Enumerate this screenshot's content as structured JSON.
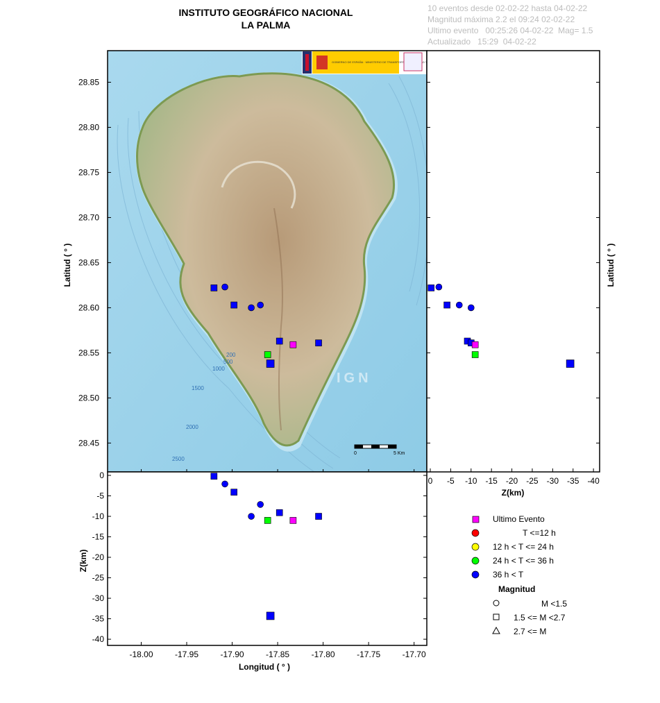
{
  "header": {
    "title_line1": "INSTITUTO GEOGRÁFICO NACIONAL",
    "title_line2": "LA PALMA",
    "info_line1": "10 eventos desde 02-02-22 hasta 04-02-22",
    "info_line2": "Magnitud máxima 2.2 el 09:24 02-02-22",
    "info_line3": "Ultimo evento   00:25:26 04-02-22  Mag= 1.5",
    "info_line4": "Actualizado   15:29  04-02-22"
  },
  "map": {
    "watermark": "IGN",
    "scale_start": "0",
    "scale_end": "5 Km",
    "contours": [
      "200",
      "500",
      "1000",
      "1500",
      "2000",
      "2500"
    ],
    "logo_text": "GOBIERNO DE ESPAÑA · MINISTERIO DE TRANSPORTES, MOVILIDAD Y AGENDA URBANA"
  },
  "colors": {
    "latest": "#ff00ff",
    "le12h": "#ff0000",
    "h12_24": "#ffff00",
    "h24_36": "#00ff00",
    "gt36h": "#0000ff",
    "sea": "#9fd3ea",
    "land": "#c9b79a"
  },
  "chart_data": {
    "type": "scatter",
    "panels": [
      "map (Longitud vs Latitud)",
      "depth vs latitude (Z vs Latitud)",
      "depth vs longitude (Longitud vs Z)"
    ],
    "xlabel": "Longitud ( ° )",
    "ylabel": "Latitud ( ° )",
    "zlabel_right": "Z(km)",
    "zlabel_bottom": "Z(km)",
    "xlim": [
      -18.037,
      -17.686
    ],
    "ylim": [
      28.418,
      28.885
    ],
    "zlim": [
      0,
      -41
    ],
    "x_ticks": [
      "-18.00",
      "-17.95",
      "-17.90",
      "-17.85",
      "-17.80",
      "-17.75",
      "-17.70"
    ],
    "x_tick_values": [
      -18.0,
      -17.95,
      -17.9,
      -17.85,
      -17.8,
      -17.75,
      -17.7
    ],
    "y_ticks": [
      "28.85",
      "28.80",
      "28.75",
      "28.70",
      "28.65",
      "28.60",
      "28.55",
      "28.50",
      "28.45"
    ],
    "y_tick_values": [
      28.85,
      28.8,
      28.75,
      28.7,
      28.65,
      28.6,
      28.55,
      28.5,
      28.45
    ],
    "z_ticks_right": [
      "0",
      "-5",
      "-10",
      "-15",
      "-20",
      "-25",
      "-30",
      "-35",
      "-40"
    ],
    "z_ticks_bottom": [
      "0",
      "-5",
      "-10",
      "-15",
      "-20",
      "-25",
      "-30",
      "-35",
      "-40"
    ],
    "z_tick_values": [
      0,
      -5,
      -10,
      -15,
      -20,
      -25,
      -30,
      -35,
      -40
    ],
    "events": [
      {
        "lon": -17.92,
        "lat": 28.622,
        "depth": 0.2,
        "mag_class": "square",
        "age_class": "gt36h"
      },
      {
        "lon": -17.908,
        "lat": 28.623,
        "depth": 2.1,
        "mag_class": "circle",
        "age_class": "gt36h"
      },
      {
        "lon": -17.898,
        "lat": 28.603,
        "depth": 4.1,
        "mag_class": "square",
        "age_class": "gt36h"
      },
      {
        "lon": -17.869,
        "lat": 28.603,
        "depth": 7.1,
        "mag_class": "circle",
        "age_class": "gt36h"
      },
      {
        "lon": -17.879,
        "lat": 28.6,
        "depth": 10.0,
        "mag_class": "circle",
        "age_class": "gt36h"
      },
      {
        "lon": -17.848,
        "lat": 28.563,
        "depth": 9.1,
        "mag_class": "square",
        "age_class": "gt36h"
      },
      {
        "lon": -17.805,
        "lat": 28.561,
        "depth": 10.0,
        "mag_class": "square",
        "age_class": "gt36h"
      },
      {
        "lon": -17.833,
        "lat": 28.559,
        "depth": 11.0,
        "mag_class": "square",
        "age_class": "latest"
      },
      {
        "lon": -17.861,
        "lat": 28.548,
        "depth": 11.0,
        "mag_class": "square",
        "age_class": "h24_36"
      },
      {
        "lon": -17.858,
        "lat": 28.538,
        "depth": 34.3,
        "mag_class": "square_large",
        "age_class": "gt36h"
      }
    ],
    "legend": {
      "latest_label": "Ultimo Evento",
      "le12h_label": "T <=12 h",
      "h12_24_label": "12 h  < T <= 24 h",
      "h24_36_label": "24 h  < T <= 36 h",
      "gt36h_label": "36 h <  T",
      "magnitude_title": "Magnitud",
      "mag1_label": "M <1.5",
      "mag2_label": "1.5 <= M <2.7",
      "mag3_label": "2.7 <= M"
    }
  }
}
